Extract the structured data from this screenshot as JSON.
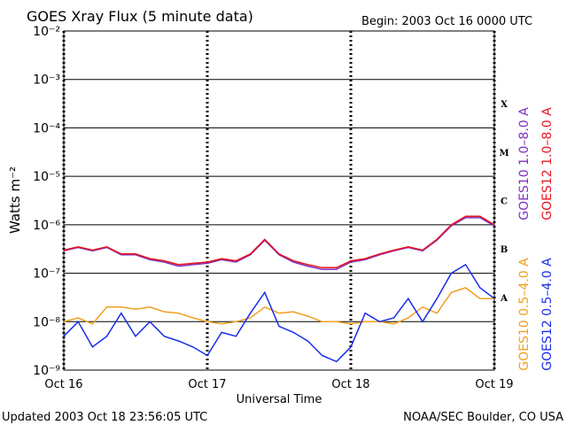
{
  "chart_data": {
    "type": "line",
    "title": "GOES Xray Flux (5 minute data)",
    "subtitle": "Begin:  2003 Oct 16 0000 UTC",
    "x_label": "Universal Time",
    "y_label": "Watts m⁻²",
    "footer_left": "Updated 2003 Oct 18 23:56:05 UTC",
    "footer_right": "NOAA/SEC Boulder, CO USA",
    "log_y": true,
    "grid": true,
    "xlim": [
      0,
      3
    ],
    "xticks": [
      {
        "value": 0,
        "label": "Oct 16"
      },
      {
        "value": 1,
        "label": "Oct 17"
      },
      {
        "value": 2,
        "label": "Oct 18"
      },
      {
        "value": 3,
        "label": "Oct 19"
      }
    ],
    "ylim": [
      1e-09,
      0.01
    ],
    "yticks": [
      {
        "value": 1e-09,
        "label": "10⁻⁹"
      },
      {
        "value": 1e-08,
        "label": "10⁻⁸"
      },
      {
        "value": 1e-07,
        "label": "10⁻⁷"
      },
      {
        "value": 1e-06,
        "label": "10⁻⁶"
      },
      {
        "value": 1e-05,
        "label": "10⁻⁵"
      },
      {
        "value": 0.0001,
        "label": "10⁻⁴"
      },
      {
        "value": 0.001,
        "label": "10⁻³"
      },
      {
        "value": 0.01,
        "label": "10⁻²"
      }
    ],
    "flare_classes": [
      {
        "label": "X",
        "value": 0.0001
      },
      {
        "label": "M",
        "value": 1e-05
      },
      {
        "label": "C",
        "value": 1e-06
      },
      {
        "label": "B",
        "value": 1e-07
      },
      {
        "label": "A",
        "value": 1e-08
      }
    ],
    "x": [
      0,
      0.1,
      0.2,
      0.3,
      0.4,
      0.5,
      0.6,
      0.7,
      0.8,
      0.9,
      1.0,
      1.1,
      1.2,
      1.3,
      1.4,
      1.5,
      1.6,
      1.7,
      1.8,
      1.9,
      2.0,
      2.1,
      2.2,
      2.3,
      2.4,
      2.5,
      2.6,
      2.7,
      2.8,
      2.9,
      3.0
    ],
    "series": [
      {
        "name": "GOES10 1.0–8.0 A",
        "color": "#7f2fbf",
        "legend_group": "long",
        "values": [
          2.9e-07,
          3.4e-07,
          2.9e-07,
          3.4e-07,
          2.4e-07,
          2.4e-07,
          1.9e-07,
          1.7e-07,
          1.4e-07,
          1.5e-07,
          1.6e-07,
          1.9e-07,
          1.7e-07,
          2.4e-07,
          4.8e-07,
          2.4e-07,
          1.7e-07,
          1.4e-07,
          1.2e-07,
          1.2e-07,
          1.7e-07,
          1.9e-07,
          2.4e-07,
          2.9e-07,
          3.4e-07,
          2.9e-07,
          4.8e-07,
          9.5e-07,
          1.4e-06,
          1.4e-06,
          9.5e-07
        ]
      },
      {
        "name": "GOES12 1.0–8.0 A",
        "color": "#e8141e",
        "legend_group": "long",
        "values": [
          3e-07,
          3.5e-07,
          3e-07,
          3.5e-07,
          2.5e-07,
          2.5e-07,
          2e-07,
          1.8e-07,
          1.5e-07,
          1.6e-07,
          1.7e-07,
          2e-07,
          1.8e-07,
          2.5e-07,
          5e-07,
          2.5e-07,
          1.8e-07,
          1.5e-07,
          1.3e-07,
          1.3e-07,
          1.8e-07,
          2e-07,
          2.5e-07,
          3e-07,
          3.5e-07,
          3e-07,
          5e-07,
          1e-06,
          1.5e-06,
          1.5e-06,
          1e-06
        ]
      },
      {
        "name": "GOES10 0.5–4.0 A",
        "color": "#f0a020",
        "legend_group": "short",
        "values": [
          1e-08,
          1.2e-08,
          9e-09,
          2e-08,
          2e-08,
          1.8e-08,
          2e-08,
          1.6e-08,
          1.5e-08,
          1.2e-08,
          1e-08,
          9e-09,
          1e-08,
          1.2e-08,
          2e-08,
          1.5e-08,
          1.6e-08,
          1.3e-08,
          1e-08,
          1e-08,
          9e-09,
          1e-08,
          1e-08,
          9e-09,
          1.2e-08,
          2e-08,
          1.5e-08,
          4e-08,
          5e-08,
          3e-08,
          3e-08
        ]
      },
      {
        "name": "GOES12 0.5–4.0 A",
        "color": "#1a2ee8",
        "legend_group": "short",
        "values": [
          5e-09,
          1e-08,
          3e-09,
          5e-09,
          1.5e-08,
          5e-09,
          1e-08,
          5e-09,
          4e-09,
          3e-09,
          2e-09,
          6e-09,
          5e-09,
          1.5e-08,
          4e-08,
          8e-09,
          6e-09,
          4e-09,
          2e-09,
          1.5e-09,
          3e-09,
          1.5e-08,
          1e-08,
          1.2e-08,
          3e-08,
          1e-08,
          3e-08,
          1e-07,
          1.5e-07,
          5e-08,
          3e-08
        ]
      }
    ]
  }
}
